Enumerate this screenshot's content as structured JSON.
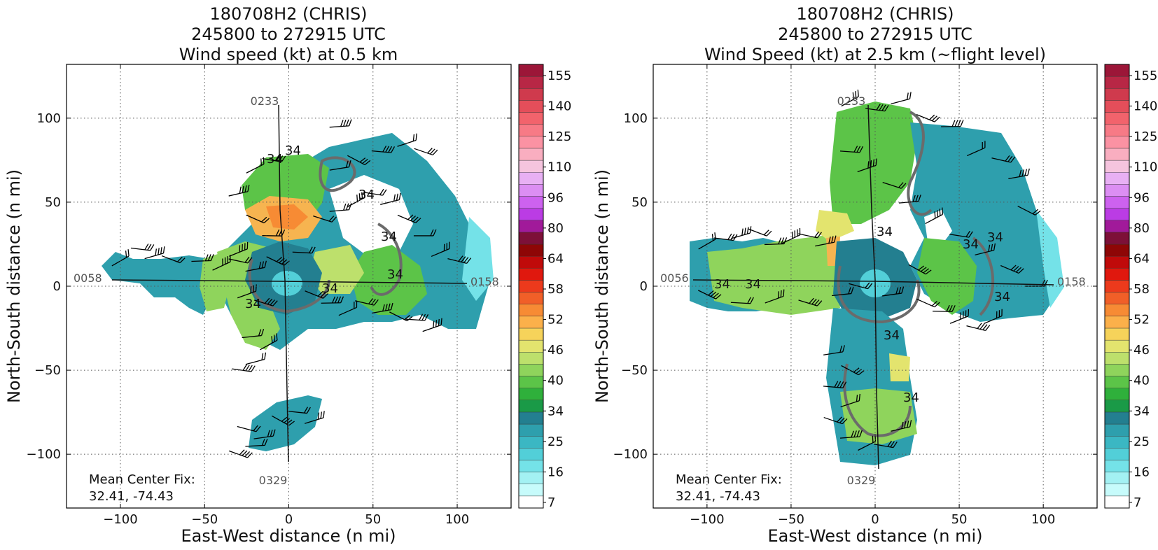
{
  "chart_data": [
    {
      "type": "heatmap",
      "title": [
        "180708H2 (CHRIS)",
        "245800 to 272915 UTC",
        "Wind speed (kt) at 0.5 km"
      ],
      "xlabel": "East-West distance (n mi)",
      "ylabel": "North-South distance (n mi)",
      "xlim": [
        -132,
        132
      ],
      "ylim": [
        -132,
        132
      ],
      "xticks": [
        -100,
        -50,
        0,
        50,
        100
      ],
      "yticks": [
        -100,
        -50,
        0,
        50,
        100
      ],
      "x_tick_labels": [
        "−100",
        "−50",
        "0",
        "50",
        "100"
      ],
      "y_tick_labels": [
        "−100",
        "−50",
        "0",
        "50",
        "100"
      ],
      "grid": true,
      "colorbar_ticks": [
        "7",
        "16",
        "25",
        "34",
        "40",
        "46",
        "52",
        "58",
        "64",
        "80",
        "96",
        "110",
        "125",
        "140",
        "155"
      ],
      "contour_labels": [
        "34",
        "34",
        "34",
        "34",
        "34",
        "34",
        "34"
      ],
      "flight_track_labels": [
        "0233",
        "0058",
        "0158",
        "0329"
      ],
      "mean_center_fix_label": "Mean Center Fix:",
      "mean_center_fix_value": "32.41, -74.43"
    },
    {
      "type": "heatmap",
      "title": [
        "180708H2 (CHRIS)",
        "245800 to 272915 UTC",
        "Wind Speed (kt) at 2.5 km (~flight level)"
      ],
      "xlabel": "East-West distance (n mi)",
      "ylabel": "North-South distance (n mi)",
      "xlim": [
        -132,
        132
      ],
      "ylim": [
        -132,
        132
      ],
      "xticks": [
        -100,
        -50,
        0,
        50,
        100
      ],
      "yticks": [
        -100,
        -50,
        0,
        50,
        100
      ],
      "x_tick_labels": [
        "−100",
        "−50",
        "0",
        "50",
        "100"
      ],
      "y_tick_labels": [
        "−100",
        "−50",
        "0",
        "50",
        "100"
      ],
      "grid": true,
      "colorbar_ticks": [
        "7",
        "16",
        "25",
        "34",
        "40",
        "46",
        "52",
        "58",
        "64",
        "80",
        "96",
        "110",
        "125",
        "140",
        "155"
      ],
      "contour_labels": [
        "34",
        "34",
        "34",
        "34",
        "34",
        "34",
        "34",
        "34"
      ],
      "flight_track_labels": [
        "0233",
        "0056",
        "0158",
        "0329"
      ],
      "mean_center_fix_label": "Mean Center Fix:",
      "mean_center_fix_value": "32.41, -74.43"
    }
  ],
  "colorbar_colors": [
    "#ffffff",
    "#c7fbfb",
    "#a3f1f3",
    "#74e2e8",
    "#52cfd8",
    "#3bb7c3",
    "#2e9fad",
    "#237f90",
    "#1a9a47",
    "#2fb03b",
    "#5cc448",
    "#8fd45c",
    "#bde06c",
    "#e3e46e",
    "#f6d35a",
    "#fbb04a",
    "#f78b34",
    "#f15f28",
    "#ec3a1c",
    "#e0180e",
    "#c00a0a",
    "#8e0606",
    "#7d1038",
    "#a11a9a",
    "#bb3ce4",
    "#cd62ef",
    "#dc8ef3",
    "#e8b0f4",
    "#f5c4de",
    "#f9aec0",
    "#fb92a3",
    "#f77a86",
    "#f2636c",
    "#e44e5a",
    "#cf3a4d",
    "#b82745",
    "#9c1638"
  ]
}
